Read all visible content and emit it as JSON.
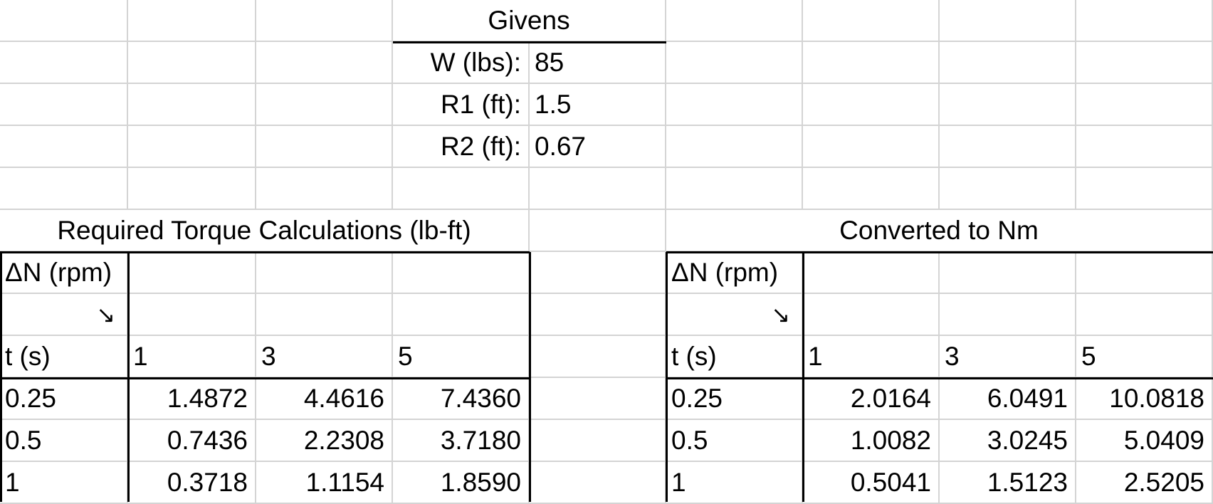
{
  "givens": {
    "header": "Givens",
    "rows": [
      {
        "label": "W (lbs):",
        "value": "85"
      },
      {
        "label": "R1 (ft):",
        "value": "1.5"
      },
      {
        "label": "R2 (ft):",
        "value": "0.67"
      }
    ]
  },
  "torque_table": {
    "title": "Required Torque Calculations (lb-ft)",
    "corner_top": "ΔN (rpm)",
    "corner_arrow": "↘",
    "corner_bottom": "t (s)",
    "col_headers": [
      "1",
      "3",
      "5"
    ],
    "rows": [
      {
        "t": "0.25",
        "values": [
          "1.4872",
          "4.4616",
          "7.4360"
        ]
      },
      {
        "t": "0.5",
        "values": [
          "0.7436",
          "2.2308",
          "3.7180"
        ]
      },
      {
        "t": "1",
        "values": [
          "0.3718",
          "1.1154",
          "1.8590"
        ]
      }
    ]
  },
  "nm_table": {
    "title": "Converted to Nm",
    "corner_top": "ΔN (rpm)",
    "corner_arrow": "↘",
    "corner_bottom": "t (s)",
    "col_headers": [
      "1",
      "3",
      "5"
    ],
    "rows": [
      {
        "t": "0.25",
        "values": [
          "2.0164",
          "6.0491",
          "10.0818"
        ]
      },
      {
        "t": "0.5",
        "values": [
          "1.0082",
          "3.0245",
          "5.0409"
        ]
      },
      {
        "t": "1",
        "values": [
          "0.5041",
          "1.5123",
          "2.5205"
        ]
      }
    ]
  }
}
